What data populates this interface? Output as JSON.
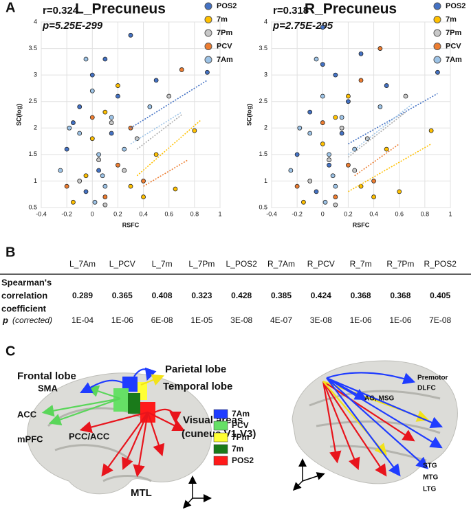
{
  "panel_labels": [
    "A",
    "B",
    "C"
  ],
  "chart_data": [
    {
      "type": "scatter",
      "title": "L_Precuneus",
      "xlabel": "RSFC",
      "ylabel": "SC(log)",
      "annotations": [
        "r=0.324",
        "p=5.25E-299"
      ],
      "xlim": [
        -0.4,
        1
      ],
      "xticks": [
        -0.4,
        -0.2,
        0,
        0.2,
        0.4,
        0.6,
        0.8,
        1
      ],
      "ylim": [
        0.5,
        4
      ],
      "yticks": [
        0.5,
        1,
        1.5,
        2,
        2.5,
        3,
        3.5,
        4
      ],
      "grid": true,
      "series": [
        {
          "name": "POS2",
          "color": "#4472c4",
          "x": [
            -0.2,
            -0.1,
            0,
            0.05,
            0.1,
            0.2,
            0.3,
            0.5,
            0.9,
            -0.05,
            0.15,
            -0.15
          ],
          "y": [
            1.6,
            2.4,
            3.0,
            1.2,
            3.3,
            2.6,
            3.75,
            2.9,
            3.05,
            0.8,
            1.9,
            2.1
          ],
          "fit_x": [
            0.3,
            0.9
          ],
          "fit_y": [
            2.0,
            2.9
          ]
        },
        {
          "name": "7m",
          "color": "#ffc000",
          "x": [
            -0.15,
            0,
            0.1,
            0.3,
            0.5,
            0.8,
            0.2,
            0.4,
            0.65,
            -0.05
          ],
          "y": [
            0.6,
            1.8,
            2.3,
            0.9,
            1.5,
            1.95,
            2.8,
            0.7,
            0.85,
            1.1
          ],
          "fit_x": [
            0.35,
            0.85
          ],
          "fit_y": [
            1.1,
            2.15
          ]
        },
        {
          "name": "7Pm",
          "color": "#c8c8c8",
          "x": [
            -0.1,
            0.05,
            0.15,
            0.35,
            0.6,
            0.1,
            0.25
          ],
          "y": [
            1.0,
            1.4,
            2.1,
            1.8,
            2.6,
            0.55,
            1.2
          ],
          "fit_x": [
            0.35,
            0.7
          ],
          "fit_y": [
            1.6,
            2.25
          ]
        },
        {
          "name": "PCV",
          "color": "#ed7d31",
          "x": [
            -0.2,
            0,
            0.2,
            0.4,
            0.7,
            0.1,
            0.3
          ],
          "y": [
            0.9,
            2.2,
            1.3,
            1.0,
            3.1,
            0.7,
            2.0
          ],
          "fit_x": [
            0.4,
            0.75
          ],
          "fit_y": [
            0.9,
            1.4
          ]
        },
        {
          "name": "7Am",
          "color": "#9dc3e6",
          "x": [
            -0.25,
            -0.1,
            0,
            0.05,
            0.1,
            0.15,
            0.25,
            0.45,
            -0.05,
            0.02,
            -0.18,
            0.08
          ],
          "y": [
            1.2,
            1.9,
            2.7,
            1.5,
            0.9,
            2.2,
            1.6,
            2.4,
            3.3,
            0.6,
            2.0,
            1.1
          ],
          "fit_x": [
            0.3,
            0.7
          ],
          "fit_y": [
            1.7,
            2.3
          ]
        }
      ]
    },
    {
      "type": "scatter",
      "title": "R_Precuneus",
      "xlabel": "RSFC",
      "ylabel": "SC(log)",
      "annotations": [
        "r=0.318",
        "p=2.75E-295"
      ],
      "xlim": [
        -0.4,
        1
      ],
      "xticks": [
        -0.4,
        -0.2,
        0,
        0.2,
        0.4,
        0.6,
        0.8,
        1
      ],
      "ylim": [
        0.5,
        4
      ],
      "yticks": [
        0.5,
        1,
        1.5,
        2,
        2.5,
        3,
        3.5,
        4
      ],
      "grid": true,
      "series": [
        {
          "name": "POS2",
          "color": "#4472c4",
          "x": [
            -0.2,
            -0.1,
            0,
            0.05,
            0.1,
            0.2,
            0.3,
            0.5,
            0.9,
            -0.05,
            0.15,
            0
          ],
          "y": [
            1.5,
            2.3,
            3.2,
            1.3,
            3.0,
            2.5,
            3.4,
            2.8,
            3.05,
            0.8,
            1.9,
            3.9
          ],
          "fit_x": [
            0.2,
            0.9
          ],
          "fit_y": [
            1.7,
            2.65
          ]
        },
        {
          "name": "7m",
          "color": "#ffc000",
          "x": [
            -0.15,
            0,
            0.1,
            0.3,
            0.5,
            0.85,
            0.2,
            0.4,
            0.6
          ],
          "y": [
            0.6,
            1.7,
            2.2,
            0.9,
            1.6,
            1.95,
            2.6,
            0.7,
            0.8
          ],
          "fit_x": [
            0.2,
            0.85
          ],
          "fit_y": [
            0.8,
            1.7
          ]
        },
        {
          "name": "7Pm",
          "color": "#c8c8c8",
          "x": [
            -0.1,
            0.05,
            0.15,
            0.35,
            0.65,
            0.1,
            0.25
          ],
          "y": [
            1.0,
            1.4,
            2.0,
            1.8,
            2.6,
            0.55,
            1.2
          ],
          "fit_x": [
            0.2,
            0.65
          ],
          "fit_y": [
            1.45,
            2.3
          ]
        },
        {
          "name": "PCV",
          "color": "#ed7d31",
          "x": [
            -0.2,
            0,
            0.2,
            0.4,
            0.45,
            0.1,
            0.3
          ],
          "y": [
            0.9,
            2.1,
            1.3,
            1.0,
            3.5,
            0.7,
            2.9
          ],
          "fit_x": [
            0.25,
            0.6
          ],
          "fit_y": [
            1.1,
            1.7
          ]
        },
        {
          "name": "7Am",
          "color": "#9dc3e6",
          "x": [
            -0.25,
            -0.1,
            0,
            0.05,
            0.1,
            0.15,
            0.25,
            0.45,
            -0.05,
            0.02,
            -0.18,
            0.08
          ],
          "y": [
            1.2,
            1.9,
            2.6,
            1.5,
            0.9,
            2.2,
            1.6,
            2.4,
            3.3,
            0.6,
            2.0,
            1.1
          ],
          "fit_x": [
            0.2,
            0.7
          ],
          "fit_y": [
            1.5,
            2.45
          ]
        }
      ]
    }
  ],
  "table": {
    "headers": [
      "L_7Am",
      "L_PCV",
      "L_7m",
      "L_7Pm",
      "L_POS2",
      "R_7Am",
      "R_PCV",
      "R_7m",
      "R_7Pm",
      "R_POS2"
    ],
    "rows": [
      {
        "label": [
          "Spearman's",
          "correlation",
          "coefficient"
        ],
        "values": [
          0.289,
          0.365,
          0.408,
          0.323,
          0.428,
          0.385,
          0.424,
          0.368,
          0.368,
          0.405
        ]
      },
      {
        "label_symbol": "p",
        "label_note": "(corrected)",
        "values": [
          "1E-04",
          "1E-06",
          "6E-08",
          "1E-05",
          "3E-08",
          "4E-07",
          "3E-08",
          "1E-06",
          "1E-06",
          "7E-08"
        ]
      }
    ]
  },
  "diagram": {
    "left_labels": [
      "Frontal lobe",
      "Parietal lobe",
      "Temporal lobe",
      "SMA",
      "ACC",
      "mPFC",
      "PCC/ACC",
      "Visual areas",
      "(cuneus,V1-V3)",
      "MTL"
    ],
    "right_labels": [
      "Premotor",
      "DLFC",
      "AG, MSG",
      "STG",
      "MTG",
      "LTG"
    ],
    "legend": [
      {
        "name": "7Am",
        "color": "#1f3cff"
      },
      {
        "name": "PCV",
        "color": "#66e066"
      },
      {
        "name": "7Pm",
        "color": "#ffff33"
      },
      {
        "name": "7m",
        "color": "#1a7a1a"
      },
      {
        "name": "POS2",
        "color": "#ff1a1a"
      }
    ]
  }
}
